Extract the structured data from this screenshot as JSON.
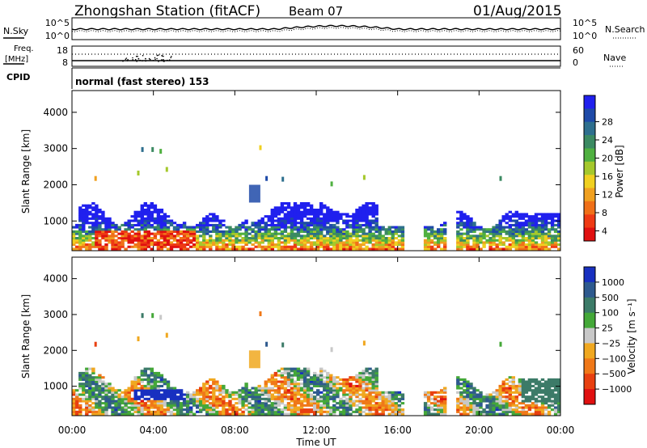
{
  "header": {
    "station": "Zhongshan Station (fitACF)",
    "beam": "Beam 07",
    "date": "01/Aug/2015"
  },
  "nsky_panel": {
    "left_label": "N.Sky",
    "right_label": "N.Search",
    "left_ticks": [
      "10^5",
      "10^0"
    ],
    "right_ticks": [
      "10^5",
      "10^0"
    ]
  },
  "freq_panel": {
    "left_label_1": "Freq.",
    "left_label_2": "[MHz]",
    "right_label": "Nave",
    "left_ticks": [
      "18",
      "8"
    ],
    "right_ticks": [
      "60",
      "0"
    ]
  },
  "cpid": {
    "label": "CPID",
    "value": "normal (fast stereo) 153"
  },
  "chart_data": [
    {
      "type": "heatmap",
      "ylabel": "Slant Range [km]",
      "ylim": [
        180,
        4600
      ],
      "yticks": [
        "4000",
        "3000",
        "2000",
        "1000"
      ],
      "yvalues": [
        4000,
        3000,
        2000,
        1000
      ],
      "colorbar": {
        "label": "Power [dB]",
        "ticks": [
          "28",
          "24",
          "20",
          "16",
          "12",
          "8",
          "4"
        ],
        "range": [
          0,
          32
        ],
        "colors": [
          "#2020ee",
          "#1e4aa8",
          "#2e6f8e",
          "#3b8a62",
          "#4fb040",
          "#a5c82c",
          "#f0d020",
          "#f0a020",
          "#f07018",
          "#ee3a14",
          "#e01010"
        ]
      }
    },
    {
      "type": "heatmap",
      "ylabel": "Slant Range [km]",
      "ylim": [
        180,
        4600
      ],
      "yticks": [
        "4000",
        "3000",
        "2000",
        "1000"
      ],
      "yvalues": [
        4000,
        3000,
        2000,
        1000
      ],
      "xlabel": "Time UT",
      "xticks": [
        "00:00",
        "04:00",
        "08:00",
        "12:00",
        "16:00",
        "20:00",
        "00:00"
      ],
      "colorbar": {
        "label": "Velocity [m s⁻¹]",
        "ticks": [
          "1000",
          "500",
          "100",
          "25",
          "−25",
          "−100",
          "−500",
          "−1000"
        ],
        "colors": [
          "#1830c0",
          "#2e5a8e",
          "#3c7b68",
          "#44a838",
          "#c8c8c8",
          "#f0a820",
          "#f07818",
          "#e84010",
          "#e01010"
        ]
      }
    }
  ]
}
